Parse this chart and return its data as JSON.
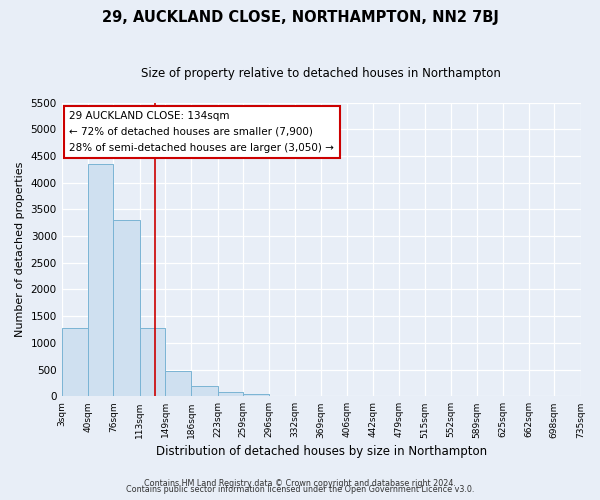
{
  "title": "29, AUCKLAND CLOSE, NORTHAMPTON, NN2 7BJ",
  "subtitle": "Size of property relative to detached houses in Northampton",
  "xlabel": "Distribution of detached houses by size in Northampton",
  "ylabel": "Number of detached properties",
  "bar_color": "#cfe0f0",
  "bar_edge_color": "#7ab4d4",
  "bin_edges": [
    3,
    40,
    76,
    113,
    149,
    186,
    223,
    259,
    296,
    332,
    369,
    406,
    442,
    479,
    515,
    552,
    589,
    625,
    662,
    698,
    735
  ],
  "bar_heights": [
    1270,
    4340,
    3300,
    1270,
    480,
    200,
    90,
    50,
    0,
    0,
    0,
    0,
    0,
    0,
    0,
    0,
    0,
    0,
    0,
    0
  ],
  "tick_labels": [
    "3sqm",
    "40sqm",
    "76sqm",
    "113sqm",
    "149sqm",
    "186sqm",
    "223sqm",
    "259sqm",
    "296sqm",
    "332sqm",
    "369sqm",
    "406sqm",
    "442sqm",
    "479sqm",
    "515sqm",
    "552sqm",
    "589sqm",
    "625sqm",
    "662sqm",
    "698sqm",
    "735sqm"
  ],
  "ylim": [
    0,
    5500
  ],
  "yticks": [
    0,
    500,
    1000,
    1500,
    2000,
    2500,
    3000,
    3500,
    4000,
    4500,
    5000,
    5500
  ],
  "annotation_title": "29 AUCKLAND CLOSE: 134sqm",
  "annotation_line1": "← 72% of detached houses are smaller (7,900)",
  "annotation_line2": "28% of semi-detached houses are larger (3,050) →",
  "annotation_box_color": "white",
  "annotation_box_edge_color": "#cc0000",
  "property_line_x": 134,
  "property_line_color": "#cc0000",
  "footer1": "Contains HM Land Registry data © Crown copyright and database right 2024.",
  "footer2": "Contains public sector information licensed under the Open Government Licence v3.0.",
  "background_color": "#e8eef7",
  "grid_color": "white",
  "title_fontsize": 10.5,
  "subtitle_fontsize": 8.5
}
